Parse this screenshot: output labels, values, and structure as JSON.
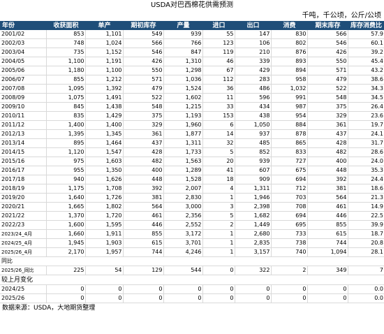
{
  "title": "USDA对巴西棉花供需预测",
  "unit": "千吨，千公顷，公斤/公顷",
  "headers": [
    "年份",
    "收获面积",
    "单产",
    "期初库存",
    "产量",
    "进口",
    "出口",
    "消费",
    "期末库存",
    "库存消费比"
  ],
  "rows": [
    [
      "2001/02",
      "853",
      "1,101",
      "549",
      "939",
      "55",
      "147",
      "830",
      "566",
      "57.9"
    ],
    [
      "2002/03",
      "748",
      "1,024",
      "566",
      "766",
      "123",
      "106",
      "802",
      "546",
      "60.1"
    ],
    [
      "2003/04",
      "735",
      "1,152",
      "546",
      "847",
      "119",
      "210",
      "876",
      "426",
      "39.2"
    ],
    [
      "2004/05",
      "1,100",
      "1,191",
      "426",
      "1,310",
      "46",
      "339",
      "893",
      "550",
      "45.4"
    ],
    [
      "2005/06",
      "1,180",
      "1,100",
      "550",
      "1,298",
      "67",
      "429",
      "894",
      "571",
      "43.2"
    ],
    [
      "2006/07",
      "855",
      "1,212",
      "571",
      "1,036",
      "112",
      "283",
      "958",
      "479",
      "38.6"
    ],
    [
      "2007/08",
      "1,095",
      "1,392",
      "479",
      "1,524",
      "36",
      "486",
      "1,032",
      "522",
      "34.3"
    ],
    [
      "2008/09",
      "1,075",
      "1,491",
      "522",
      "1,602",
      "11",
      "596",
      "991",
      "548",
      "34.5"
    ],
    [
      "2009/10",
      "845",
      "1,438",
      "548",
      "1,215",
      "33",
      "434",
      "987",
      "375",
      "26.4"
    ],
    [
      "2010/11",
      "835",
      "1,429",
      "375",
      "1,193",
      "153",
      "438",
      "954",
      "329",
      "23.6"
    ],
    [
      "2011/12",
      "1,400",
      "1,400",
      "329",
      "1,960",
      "6",
      "1,050",
      "884",
      "361",
      "19.7"
    ],
    [
      "2012/13",
      "1,395",
      "1,345",
      "361",
      "1,877",
      "14",
      "937",
      "878",
      "437",
      "24.1"
    ],
    [
      "2013/14",
      "895",
      "1,464",
      "437",
      "1,311",
      "32",
      "485",
      "865",
      "428",
      "31.7"
    ],
    [
      "2014/15",
      "1,120",
      "1,547",
      "428",
      "1,733",
      "5",
      "852",
      "833",
      "482",
      "28.6"
    ],
    [
      "2015/16",
      "975",
      "1,603",
      "482",
      "1,563",
      "20",
      "939",
      "727",
      "400",
      "24.0"
    ],
    [
      "2016/17",
      "955",
      "1,350",
      "400",
      "1,289",
      "41",
      "607",
      "675",
      "448",
      "35.3"
    ],
    [
      "2017/18",
      "940",
      "1,626",
      "448",
      "1,528",
      "18",
      "909",
      "694",
      "392",
      "24.4"
    ],
    [
      "2018/19",
      "1,175",
      "1,708",
      "392",
      "2,007",
      "4",
      "1,311",
      "712",
      "381",
      "18.6"
    ],
    [
      "2019/20",
      "1,640",
      "1,726",
      "381",
      "2,830",
      "1",
      "1,946",
      "703",
      "564",
      "21.3"
    ],
    [
      "2020/21",
      "1,665",
      "1,802",
      "564",
      "3,000",
      "3",
      "2,398",
      "708",
      "461",
      "14.9"
    ],
    [
      "2021/22",
      "1,370",
      "1,720",
      "461",
      "2,356",
      "5",
      "1,682",
      "694",
      "446",
      "22.5"
    ],
    [
      "2022/23",
      "1,600",
      "1,595",
      "446",
      "2,552",
      "2",
      "1,449",
      "695",
      "855",
      "39.9"
    ],
    [
      "2023/24_4月",
      "1,660",
      "1,911",
      "855",
      "3,172",
      "1",
      "2,680",
      "733",
      "615",
      "18.7"
    ],
    [
      "2024/25_4月",
      "1,945",
      "1,903",
      "615",
      "3,701",
      "1",
      "2,835",
      "738",
      "744",
      "20.8"
    ],
    [
      "2025/26_4月",
      "2,170",
      "1,957",
      "744",
      "4,246",
      "1",
      "3,157",
      "740",
      "1,094",
      "28.1"
    ]
  ],
  "yoy_label": "同比",
  "yoy_row": [
    "2025/26_同比",
    "225",
    "54",
    "129",
    "544",
    "0",
    "322",
    "2",
    "349",
    "7"
  ],
  "mom_label": "较上月变化",
  "mom_rows": [
    [
      "2024/25",
      "0",
      "0",
      "0",
      "0",
      "0",
      "0",
      "0",
      "0",
      "0.0"
    ],
    [
      "2025/26",
      "0",
      "0",
      "0",
      "0",
      "0",
      "0",
      "0",
      "0",
      "0.0"
    ]
  ],
  "source": "数据来源：USDA，大地期货整理",
  "colors": {
    "header_bg": "#1f4e79",
    "header_text": "#ffffff",
    "grid": "#d9d9d9"
  }
}
